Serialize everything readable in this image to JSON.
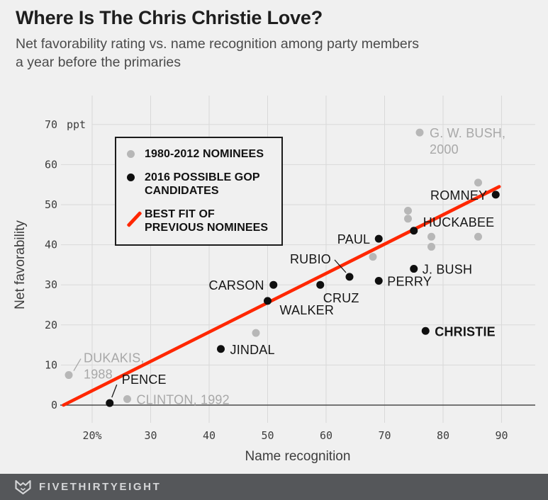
{
  "header": {
    "title": "Where Is The Chris Christie Love?",
    "subtitle_line1": "Net favorability rating vs. name recognition among party members",
    "subtitle_line2": "a year before the primaries"
  },
  "legend": {
    "items": [
      {
        "type": "dot",
        "color": "#b7b7b7",
        "label": "1980-2012 NOMINEES"
      },
      {
        "type": "dot",
        "color": "#0f0f0f",
        "label": "2016 POSSIBLE GOP CANDIDATES"
      },
      {
        "type": "line",
        "color": "#ff2700",
        "label": "BEST FIT OF PREVIOUS NOMINEES"
      }
    ]
  },
  "chart_data": {
    "type": "scatter",
    "xlabel": "Name recognition",
    "ylabel": "Net favorability",
    "y_unit_label": "ppt",
    "xlim": [
      14.5,
      95.7
    ],
    "ylim": [
      -4.5,
      77
    ],
    "grid": true,
    "legend_position": "upper-left",
    "x_ticks": [
      {
        "v": 20,
        "label": "20%"
      },
      {
        "v": 30,
        "label": "30"
      },
      {
        "v": 40,
        "label": "40"
      },
      {
        "v": 50,
        "label": "50"
      },
      {
        "v": 60,
        "label": "60"
      },
      {
        "v": 70,
        "label": "70"
      },
      {
        "v": 80,
        "label": "80"
      },
      {
        "v": 90,
        "label": "90"
      }
    ],
    "y_ticks": [
      {
        "v": 0,
        "label": "0"
      },
      {
        "v": 10,
        "label": "10"
      },
      {
        "v": 20,
        "label": "20"
      },
      {
        "v": 30,
        "label": "30"
      },
      {
        "v": 40,
        "label": "40"
      },
      {
        "v": 50,
        "label": "50"
      },
      {
        "v": 60,
        "label": "60"
      },
      {
        "v": 70,
        "label": "70"
      }
    ],
    "series": [
      {
        "name": "1980-2012 nominees",
        "color": "#b7b7b7",
        "label_color": "#a8a8a8",
        "points": [
          {
            "x": 16,
            "y": 7.5,
            "label": "DUKAKIS,",
            "label2": "1988",
            "anchor": "start",
            "dx": 21,
            "dy": -24,
            "callout": [
              7,
              -6,
              17,
              -23
            ]
          },
          {
            "x": 26,
            "y": 1.5,
            "label": "CLINTON, 1992",
            "anchor": "start",
            "dx": 13,
            "dy": 1
          },
          {
            "x": 48,
            "y": 18
          },
          {
            "x": 68,
            "y": 37
          },
          {
            "x": 74,
            "y": 48.5
          },
          {
            "x": 74,
            "y": 46.5
          },
          {
            "x": 76,
            "y": 68,
            "label": "G. W. BUSH,",
            "label2": "2000",
            "anchor": "start",
            "dx": 14,
            "dy": 1
          },
          {
            "x": 78,
            "y": 42
          },
          {
            "x": 78,
            "y": 39.5
          },
          {
            "x": 86,
            "y": 55.5
          },
          {
            "x": 86,
            "y": 42
          }
        ]
      },
      {
        "name": "2016 possible GOP candidates",
        "color": "#0f0f0f",
        "label_color": "#161616",
        "points": [
          {
            "x": 23,
            "y": 0.5,
            "label": "PENCE",
            "anchor": "start",
            "dx": 17,
            "dy": -33,
            "callout": [
              10,
              -26,
              3,
              -8
            ]
          },
          {
            "x": 42,
            "y": 14,
            "label": "JINDAL",
            "anchor": "start",
            "dx": 13,
            "dy": 1
          },
          {
            "x": 50,
            "y": 26,
            "label": "WALKER",
            "anchor": "start",
            "dx": 17,
            "dy": 13
          },
          {
            "x": 51,
            "y": 30,
            "label": "CARSON",
            "anchor": "end",
            "dx": -13,
            "dy": 1
          },
          {
            "x": 59,
            "y": 30,
            "label": "CRUZ",
            "anchor": "start",
            "dx": 4,
            "dy": 19
          },
          {
            "x": 64,
            "y": 32,
            "label": "RUBIO",
            "anchor": "end",
            "dx": -26,
            "dy": -25,
            "callout": [
              -21,
              -24,
              -5,
              -6
            ]
          },
          {
            "x": 69,
            "y": 41.5,
            "label": "PAUL",
            "anchor": "end",
            "dx": -12,
            "dy": 1
          },
          {
            "x": 69,
            "y": 31,
            "label": "PERRY",
            "anchor": "start",
            "dx": 12,
            "dy": 1
          },
          {
            "x": 75,
            "y": 43.5,
            "label": "HUCKABEE",
            "anchor": "start",
            "dx": 13,
            "dy": -12
          },
          {
            "x": 75,
            "y": 34,
            "label": "J. BUSH",
            "anchor": "start",
            "dx": 12,
            "dy": 1
          },
          {
            "x": 77,
            "y": 18.5,
            "label": "CHRISTIE",
            "anchor": "start",
            "dx": 13,
            "dy": 1,
            "bold": true
          },
          {
            "x": 89,
            "y": 52.5,
            "label": "ROMNEY",
            "anchor": "end",
            "dx": -12,
            "dy": 1
          }
        ]
      }
    ],
    "best_fit": {
      "x1": 15.1,
      "y1": 0,
      "x2": 89.6,
      "y2": 54.5,
      "color": "#ff2700"
    }
  },
  "colors": {
    "background": "#f0f0f0",
    "gridline": "#d9d9d9",
    "axis_line": "#4a4a4a",
    "tick_text": "#3d3d3d",
    "accent_red": "#ff2700"
  },
  "footer": {
    "brand": "FIVETHIRTYEIGHT"
  }
}
